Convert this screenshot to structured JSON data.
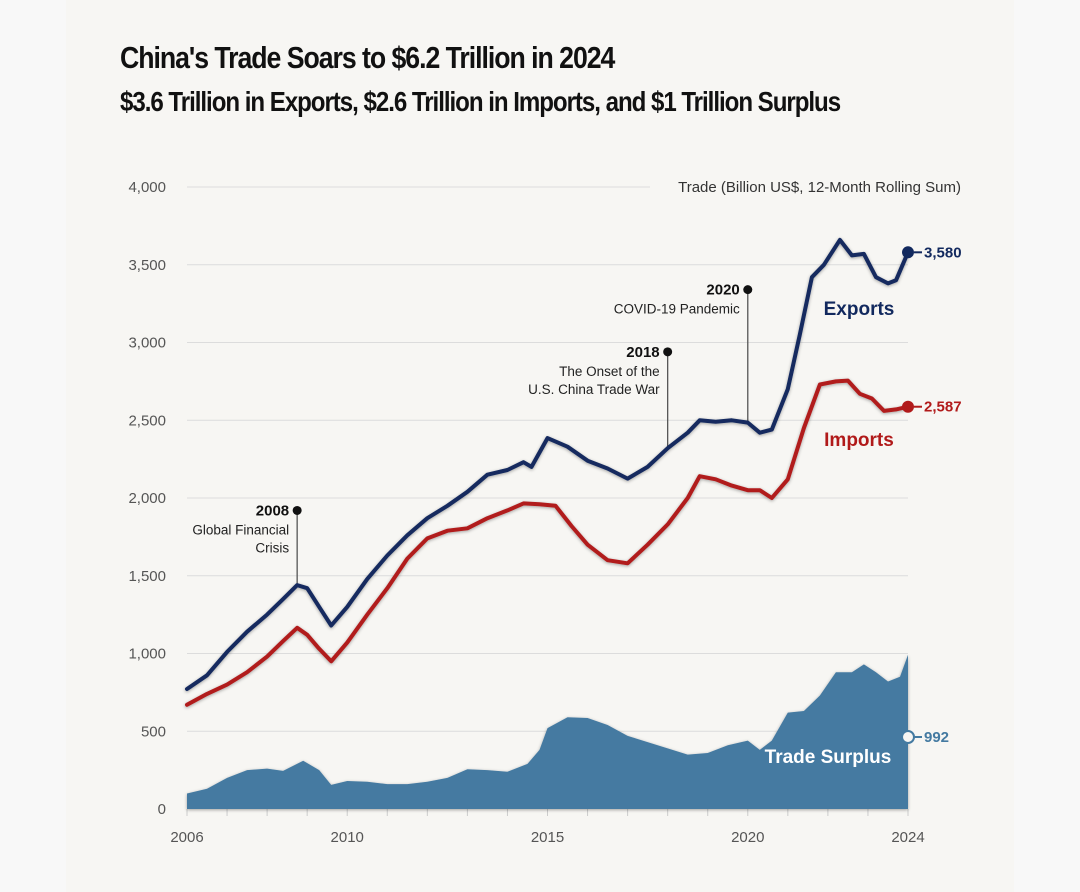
{
  "chart_data": {
    "type": "line",
    "title": "China's Trade Soars to $6.2 Trillion in 2024",
    "subtitle": "$3.6 Trillion in Exports, $2.6 Trillion in Imports, and $1 Trillion Surplus",
    "ylabel": "Trade (Billion US$, 12-Month Rolling Sum)",
    "xlabel": "",
    "ylim": [
      0,
      4000
    ],
    "xlim": [
      2006,
      2024
    ],
    "yticks": [
      0,
      500,
      1000,
      1500,
      2000,
      2500,
      3000,
      3500,
      4000
    ],
    "ytick_labels": [
      "0",
      "500",
      "1,000",
      "1,500",
      "2,000",
      "2,500",
      "3,000",
      "3,500",
      "4,000"
    ],
    "xticks": [
      2006,
      2010,
      2015,
      2020,
      2024
    ],
    "xtick_labels": [
      "2006",
      "2010",
      "2015",
      "2020",
      "2024"
    ],
    "grid": true,
    "series": [
      {
        "name": "Exports",
        "color": "#12295e",
        "kind": "line",
        "end_label": "3,580",
        "points": [
          [
            2006.0,
            772
          ],
          [
            2006.5,
            860
          ],
          [
            2007.0,
            1010
          ],
          [
            2007.5,
            1140
          ],
          [
            2008.0,
            1250
          ],
          [
            2008.4,
            1350
          ],
          [
            2008.75,
            1440
          ],
          [
            2009.0,
            1420
          ],
          [
            2009.3,
            1300
          ],
          [
            2009.6,
            1180
          ],
          [
            2010.0,
            1300
          ],
          [
            2010.5,
            1480
          ],
          [
            2011.0,
            1630
          ],
          [
            2011.5,
            1760
          ],
          [
            2012.0,
            1870
          ],
          [
            2012.5,
            1950
          ],
          [
            2013.0,
            2040
          ],
          [
            2013.5,
            2150
          ],
          [
            2014.0,
            2180
          ],
          [
            2014.4,
            2230
          ],
          [
            2014.6,
            2200
          ],
          [
            2015.0,
            2385
          ],
          [
            2015.5,
            2330
          ],
          [
            2016.0,
            2240
          ],
          [
            2016.5,
            2190
          ],
          [
            2017.0,
            2125
          ],
          [
            2017.5,
            2200
          ],
          [
            2018.0,
            2320
          ],
          [
            2018.5,
            2420
          ],
          [
            2018.8,
            2500
          ],
          [
            2019.2,
            2490
          ],
          [
            2019.6,
            2500
          ],
          [
            2020.0,
            2485
          ],
          [
            2020.3,
            2420
          ],
          [
            2020.6,
            2440
          ],
          [
            2021.0,
            2700
          ],
          [
            2021.3,
            3050
          ],
          [
            2021.6,
            3420
          ],
          [
            2021.9,
            3500
          ],
          [
            2022.3,
            3660
          ],
          [
            2022.6,
            3560
          ],
          [
            2022.9,
            3570
          ],
          [
            2023.2,
            3420
          ],
          [
            2023.5,
            3380
          ],
          [
            2023.7,
            3400
          ],
          [
            2024.0,
            3580
          ]
        ]
      },
      {
        "name": "Imports",
        "color": "#b11a1a",
        "kind": "line",
        "end_label": "2,587",
        "points": [
          [
            2006.0,
            670
          ],
          [
            2006.5,
            740
          ],
          [
            2007.0,
            800
          ],
          [
            2007.5,
            880
          ],
          [
            2008.0,
            980
          ],
          [
            2008.4,
            1080
          ],
          [
            2008.75,
            1165
          ],
          [
            2009.0,
            1120
          ],
          [
            2009.3,
            1030
          ],
          [
            2009.6,
            950
          ],
          [
            2010.0,
            1070
          ],
          [
            2010.5,
            1250
          ],
          [
            2011.0,
            1420
          ],
          [
            2011.5,
            1610
          ],
          [
            2012.0,
            1740
          ],
          [
            2012.5,
            1790
          ],
          [
            2013.0,
            1805
          ],
          [
            2013.5,
            1870
          ],
          [
            2014.0,
            1920
          ],
          [
            2014.4,
            1965
          ],
          [
            2014.8,
            1960
          ],
          [
            2015.2,
            1950
          ],
          [
            2015.6,
            1820
          ],
          [
            2016.0,
            1700
          ],
          [
            2016.5,
            1600
          ],
          [
            2017.0,
            1580
          ],
          [
            2017.5,
            1700
          ],
          [
            2018.0,
            1830
          ],
          [
            2018.5,
            2000
          ],
          [
            2018.8,
            2140
          ],
          [
            2019.2,
            2120
          ],
          [
            2019.6,
            2080
          ],
          [
            2020.0,
            2050
          ],
          [
            2020.3,
            2050
          ],
          [
            2020.6,
            2000
          ],
          [
            2021.0,
            2120
          ],
          [
            2021.4,
            2450
          ],
          [
            2021.8,
            2730
          ],
          [
            2022.2,
            2750
          ],
          [
            2022.5,
            2755
          ],
          [
            2022.8,
            2670
          ],
          [
            2023.1,
            2640
          ],
          [
            2023.4,
            2560
          ],
          [
            2023.7,
            2570
          ],
          [
            2024.0,
            2587
          ]
        ]
      },
      {
        "name": "Trade Surplus",
        "color": "#447aa1",
        "kind": "area",
        "end_label": "992",
        "points": [
          [
            2006.0,
            100
          ],
          [
            2006.5,
            130
          ],
          [
            2007.0,
            200
          ],
          [
            2007.5,
            250
          ],
          [
            2008.0,
            260
          ],
          [
            2008.4,
            245
          ],
          [
            2008.9,
            310
          ],
          [
            2009.3,
            250
          ],
          [
            2009.6,
            155
          ],
          [
            2010.0,
            180
          ],
          [
            2010.5,
            175
          ],
          [
            2011.0,
            160
          ],
          [
            2011.5,
            160
          ],
          [
            2012.0,
            175
          ],
          [
            2012.5,
            200
          ],
          [
            2013.0,
            255
          ],
          [
            2013.5,
            250
          ],
          [
            2014.0,
            240
          ],
          [
            2014.5,
            290
          ],
          [
            2014.8,
            380
          ],
          [
            2015.0,
            520
          ],
          [
            2015.5,
            590
          ],
          [
            2016.0,
            585
          ],
          [
            2016.5,
            540
          ],
          [
            2017.0,
            470
          ],
          [
            2017.5,
            430
          ],
          [
            2018.0,
            390
          ],
          [
            2018.5,
            350
          ],
          [
            2019.0,
            360
          ],
          [
            2019.5,
            410
          ],
          [
            2020.0,
            440
          ],
          [
            2020.3,
            380
          ],
          [
            2020.6,
            440
          ],
          [
            2021.0,
            620
          ],
          [
            2021.4,
            630
          ],
          [
            2021.8,
            730
          ],
          [
            2022.2,
            880
          ],
          [
            2022.6,
            880
          ],
          [
            2022.9,
            930
          ],
          [
            2023.2,
            880
          ],
          [
            2023.5,
            820
          ],
          [
            2023.8,
            850
          ],
          [
            2024.0,
            992
          ]
        ]
      }
    ],
    "annotations": [
      {
        "year_label": "2008",
        "x": 2008.75,
        "lines": [
          "Global Financial",
          "Crisis"
        ],
        "anchor_value": 1920,
        "series_value": 1440
      },
      {
        "year_label": "2018",
        "x": 2018.0,
        "lines": [
          "The Onset of the",
          "U.S. China Trade War"
        ],
        "anchor_value": 2940,
        "series_value": 2320
      },
      {
        "year_label": "2020",
        "x": 2020.0,
        "lines": [
          "COVID-19 Pandemic"
        ],
        "anchor_value": 3340,
        "series_value": 2485
      }
    ]
  }
}
